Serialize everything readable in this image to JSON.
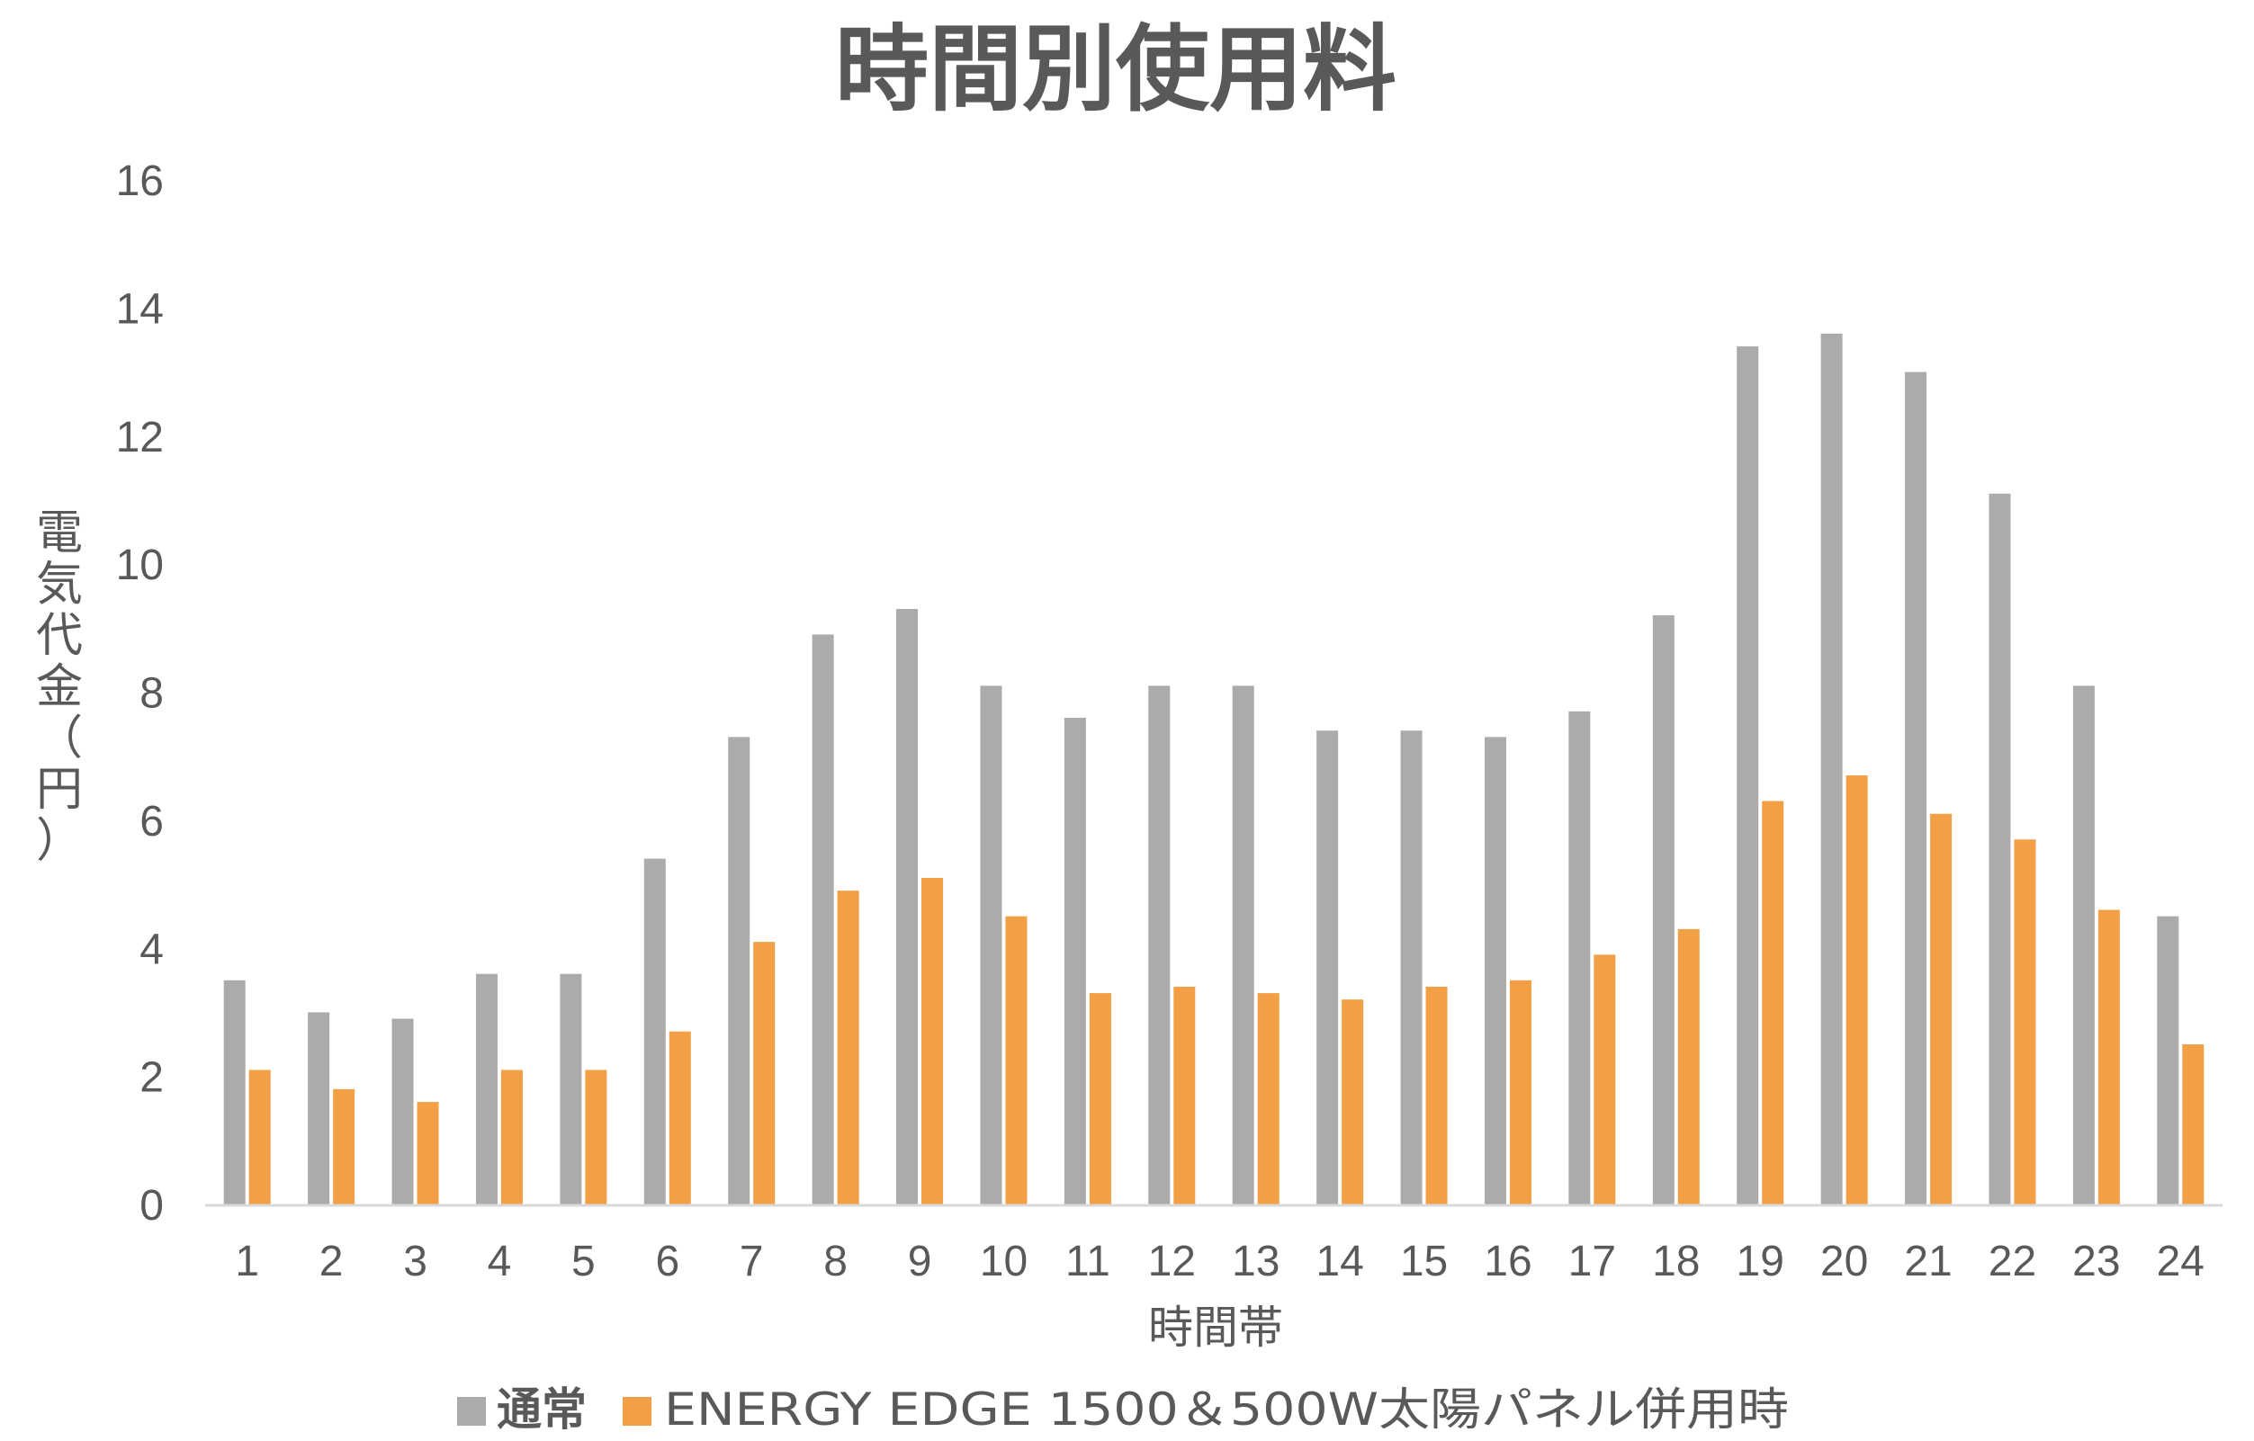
{
  "chart_data": {
    "type": "bar",
    "title": "時間別使用料",
    "xlabel": "時間帯",
    "ylabel": "電気代金（円）",
    "ylim": [
      0,
      16
    ],
    "yticks": [
      0,
      2,
      4,
      6,
      8,
      10,
      12,
      14,
      16
    ],
    "grid": false,
    "legend_position": "bottom",
    "categories": [
      "1",
      "2",
      "3",
      "4",
      "5",
      "6",
      "7",
      "8",
      "9",
      "10",
      "11",
      "12",
      "13",
      "14",
      "15",
      "16",
      "17",
      "18",
      "19",
      "20",
      "21",
      "22",
      "23",
      "24"
    ],
    "series": [
      {
        "name": "通常",
        "color": "#ADAAAA",
        "values": [
          3.5,
          3.0,
          2.9,
          3.6,
          3.6,
          5.4,
          7.3,
          8.9,
          9.3,
          8.1,
          7.6,
          8.1,
          8.1,
          7.4,
          7.4,
          7.3,
          7.7,
          9.2,
          13.4,
          13.6,
          13.0,
          11.1,
          8.1,
          4.5
        ]
      },
      {
        "name": "ENERGY EDGE 1500＆500W太陽パネル併用時",
        "color": "#F39F45",
        "values": [
          2.1,
          1.8,
          1.6,
          2.1,
          2.1,
          2.7,
          4.1,
          4.9,
          5.1,
          4.5,
          3.3,
          3.4,
          3.3,
          3.2,
          3.4,
          3.5,
          3.9,
          4.3,
          6.3,
          6.7,
          6.1,
          5.7,
          4.6,
          2.5
        ]
      }
    ]
  }
}
